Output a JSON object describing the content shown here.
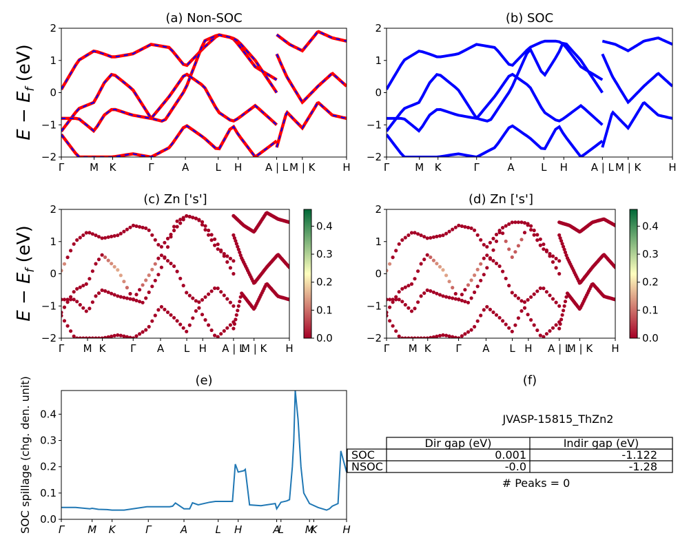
{
  "figure_title": "",
  "charts": {
    "a": {
      "title": "(a) Non-SOC"
    },
    "b": {
      "title": "(b) SOC"
    },
    "c": {
      "title": "(c)  Zn ['s']"
    },
    "d": {
      "title": "(d) Zn ['s']"
    },
    "e": {
      "title": "(e)"
    },
    "f": {
      "title": "(f)"
    }
  },
  "band_ylabel": "E − E_f (eV)",
  "band_ylabel_main": "E − E",
  "band_ylabel_sub": "f",
  "band_ylabel_unit": " (eV)",
  "spillage_ylabel": "SOC spillage (chg. den. unit)",
  "colorbar_ticks": [
    "0.0",
    "0.1",
    "0.2",
    "0.3",
    "0.4"
  ],
  "colors": {
    "nonsoc_line": "#ff0000",
    "nonsoc_dash": "#0000ff",
    "soc_line": "#0000ff",
    "spillage_line": "#1f77b4",
    "cmap_low": "#a50026",
    "cmap_mid": "#ffffbf",
    "cmap_high": "#006837"
  },
  "info": {
    "material": "JVASP-15815_ThZn2",
    "table": {
      "headers": [
        "Dir gap (eV)",
        "Indir gap (eV)"
      ],
      "rows": [
        {
          "label": "SOC",
          "dir": "0.001",
          "indir": "-1.122"
        },
        {
          "label": "NSOC",
          "dir": "-0.0",
          "indir": "-1.28"
        }
      ]
    },
    "peaks": "# Peaks = 0"
  },
  "chart_data": [
    {
      "panel": "a",
      "type": "line",
      "title": "(a) Non-SOC",
      "ylabel": "E − E_f (eV)",
      "ylim": [
        -2,
        2
      ],
      "yticks": [
        "−2",
        "−1",
        "0",
        "1",
        "2"
      ],
      "kpath_labels": [
        "Γ",
        "M",
        "K",
        "Γ",
        "A",
        "L",
        "H",
        "A | L",
        "M | K",
        "H"
      ],
      "kpath_positions": [
        0,
        0.115,
        0.18,
        0.315,
        0.435,
        0.55,
        0.62,
        0.755,
        0.845,
        1.0
      ],
      "series": [
        {
          "x": [
            0,
            0.06,
            0.115,
            0.15,
            0.18,
            0.25,
            0.315,
            0.38,
            0.435,
            0.5,
            0.55,
            0.6,
            0.62,
            0.68,
            0.755
          ],
          "y": [
            0.1,
            1.0,
            1.3,
            1.2,
            1.1,
            1.2,
            1.5,
            1.4,
            0.8,
            1.4,
            1.8,
            1.7,
            1.5,
            0.8,
            0.4
          ]
        },
        {
          "x": [
            0,
            0.06,
            0.115,
            0.15,
            0.18,
            0.25,
            0.315,
            0.36,
            0.435,
            0.5,
            0.55,
            0.6,
            0.62,
            0.68,
            0.755
          ],
          "y": [
            -1.2,
            -0.5,
            -0.3,
            0.3,
            0.6,
            0.1,
            -0.8,
            -0.9,
            0.1,
            1.6,
            1.8,
            1.7,
            1.6,
            1.0,
            0.0
          ]
        },
        {
          "x": [
            0,
            0.06,
            0.115,
            0.15,
            0.18,
            0.25,
            0.315,
            0.38,
            0.435,
            0.5,
            0.55,
            0.6,
            0.62,
            0.68,
            0.755
          ],
          "y": [
            -0.8,
            -0.8,
            -1.2,
            -0.7,
            -0.5,
            -0.7,
            -0.8,
            -0.1,
            0.6,
            0.2,
            -0.6,
            -0.9,
            -0.8,
            -0.4,
            -1.0
          ]
        },
        {
          "x": [
            0,
            0.06,
            0.115,
            0.15,
            0.18,
            0.25,
            0.315,
            0.38,
            0.435,
            0.5,
            0.55,
            0.6,
            0.62,
            0.68,
            0.755
          ],
          "y": [
            -1.3,
            -2.0,
            -2.0,
            -2.0,
            -2.0,
            -1.9,
            -2.0,
            -1.7,
            -1.0,
            -1.4,
            -1.8,
            -1.0,
            -1.3,
            -2.0,
            -1.5
          ]
        },
        {
          "x": [
            0.755,
            0.79,
            0.845,
            0.9,
            0.95,
            1.0
          ],
          "y": [
            1.2,
            0.5,
            -0.3,
            0.2,
            0.6,
            0.2
          ]
        },
        {
          "x": [
            0.755,
            0.79,
            0.845,
            0.9,
            0.95,
            1.0
          ],
          "y": [
            -1.7,
            -0.6,
            -1.1,
            -0.3,
            -0.7,
            -0.8
          ]
        },
        {
          "x": [
            0.755,
            0.8,
            0.845,
            0.9,
            0.95,
            1.0
          ],
          "y": [
            1.8,
            1.5,
            1.3,
            1.9,
            1.7,
            1.6
          ]
        }
      ]
    },
    {
      "panel": "b",
      "type": "line",
      "title": "(b) SOC",
      "ylim": [
        -2,
        2
      ],
      "yticks": [
        "−2",
        "−1",
        "0",
        "1",
        "2"
      ],
      "kpath_labels": [
        "Γ",
        "M",
        "K",
        "Γ",
        "A",
        "L",
        "H",
        "A | L",
        "M | K",
        "H"
      ],
      "kpath_positions": [
        0,
        0.115,
        0.18,
        0.315,
        0.435,
        0.55,
        0.62,
        0.755,
        0.845,
        1.0
      ],
      "series": [
        {
          "x": [
            0,
            0.06,
            0.115,
            0.15,
            0.18,
            0.25,
            0.315,
            0.38,
            0.435,
            0.5,
            0.55,
            0.6,
            0.62,
            0.68,
            0.755
          ],
          "y": [
            0.1,
            1.0,
            1.3,
            1.2,
            1.1,
            1.2,
            1.5,
            1.4,
            0.8,
            1.4,
            1.6,
            1.6,
            1.5,
            0.8,
            0.4
          ]
        },
        {
          "x": [
            0,
            0.06,
            0.115,
            0.15,
            0.18,
            0.25,
            0.315,
            0.36,
            0.435,
            0.5,
            0.55,
            0.6,
            0.62,
            0.68,
            0.755
          ],
          "y": [
            -1.2,
            -0.5,
            -0.3,
            0.3,
            0.6,
            0.1,
            -0.8,
            -0.9,
            0.1,
            1.4,
            0.5,
            1.2,
            1.6,
            1.0,
            0.0
          ]
        },
        {
          "x": [
            0,
            0.06,
            0.115,
            0.15,
            0.18,
            0.25,
            0.315,
            0.38,
            0.435,
            0.5,
            0.55,
            0.6,
            0.62,
            0.68,
            0.755
          ],
          "y": [
            -0.8,
            -0.8,
            -1.2,
            -0.7,
            -0.5,
            -0.7,
            -0.8,
            -0.1,
            0.6,
            0.2,
            -0.6,
            -0.9,
            -0.8,
            -0.4,
            -1.0
          ]
        },
        {
          "x": [
            0,
            0.06,
            0.115,
            0.15,
            0.18,
            0.25,
            0.315,
            0.38,
            0.435,
            0.5,
            0.55,
            0.6,
            0.62,
            0.68,
            0.755
          ],
          "y": [
            -1.3,
            -2.0,
            -2.0,
            -2.0,
            -2.0,
            -1.9,
            -2.0,
            -1.7,
            -1.0,
            -1.4,
            -1.8,
            -1.0,
            -1.3,
            -2.0,
            -1.5
          ]
        },
        {
          "x": [
            0.755,
            0.79,
            0.845,
            0.9,
            0.95,
            1.0
          ],
          "y": [
            1.2,
            0.5,
            -0.3,
            0.2,
            0.6,
            0.2
          ]
        },
        {
          "x": [
            0.755,
            0.79,
            0.845,
            0.9,
            0.95,
            1.0
          ],
          "y": [
            -1.7,
            -0.6,
            -1.1,
            -0.3,
            -0.7,
            -0.8
          ]
        },
        {
          "x": [
            0.755,
            0.8,
            0.845,
            0.9,
            0.95,
            1.0
          ],
          "y": [
            1.6,
            1.5,
            1.3,
            1.6,
            1.7,
            1.5
          ]
        }
      ]
    },
    {
      "panel": "c",
      "type": "scatter",
      "title": "(c)  Zn ['s']",
      "ylim": [
        -2,
        2
      ],
      "colorbar_range": [
        0.0,
        0.45
      ],
      "kpath_labels": [
        "Γ",
        "M",
        "K",
        "Γ",
        "A",
        "L",
        "H",
        "A | L",
        "M | K",
        "H"
      ],
      "kpath_positions": [
        0,
        0.115,
        0.18,
        0.315,
        0.435,
        0.55,
        0.62,
        0.755,
        0.845,
        1.0
      ],
      "weight_notes": "mostly ~0 (dark red); Zn s weight ~0.2 near Γ around 0.2 eV"
    },
    {
      "panel": "d",
      "type": "scatter",
      "title": "(d) Zn ['s']",
      "ylim": [
        -2,
        2
      ],
      "colorbar_range": [
        0.0,
        0.45
      ],
      "kpath_labels": [
        "Γ",
        "M",
        "K",
        "Γ",
        "A",
        "L",
        "H",
        "A | L",
        "M | K",
        "H"
      ],
      "kpath_positions": [
        0,
        0.115,
        0.18,
        0.315,
        0.435,
        0.55,
        0.62,
        0.755,
        0.845,
        1.0
      ]
    },
    {
      "panel": "e",
      "type": "line",
      "title": "(e)",
      "ylabel": "SOC spillage (chg. den. unit)",
      "ylim": [
        0,
        0.49
      ],
      "yticks": [
        "0.0",
        "0.1",
        "0.2",
        "0.3",
        "0.4"
      ],
      "kpath_labels": [
        "Γ",
        "M",
        "K",
        "Γ",
        "A",
        "L",
        "H",
        "A",
        "L",
        "M",
        "K",
        "H"
      ],
      "kpath_positions": [
        0,
        0.108,
        0.178,
        0.305,
        0.43,
        0.55,
        0.62,
        0.755,
        0.77,
        0.87,
        0.885,
        1.0
      ],
      "x": [
        0,
        0.05,
        0.1,
        0.108,
        0.13,
        0.16,
        0.178,
        0.22,
        0.3,
        0.305,
        0.34,
        0.38,
        0.39,
        0.4,
        0.43,
        0.45,
        0.46,
        0.48,
        0.52,
        0.54,
        0.6,
        0.61,
        0.62,
        0.64,
        0.645,
        0.66,
        0.7,
        0.75,
        0.755,
        0.77,
        0.79,
        0.8,
        0.81,
        0.815,
        0.82,
        0.83,
        0.84,
        0.85,
        0.87,
        0.9,
        0.93,
        0.94,
        0.95,
        0.96,
        0.97,
        0.98,
        1.0
      ],
      "y": [
        0.045,
        0.045,
        0.04,
        0.042,
        0.038,
        0.037,
        0.035,
        0.035,
        0.048,
        0.048,
        0.048,
        0.048,
        0.05,
        0.062,
        0.04,
        0.04,
        0.063,
        0.055,
        0.065,
        0.068,
        0.068,
        0.21,
        0.18,
        0.185,
        0.19,
        0.055,
        0.052,
        0.06,
        0.04,
        0.065,
        0.07,
        0.075,
        0.2,
        0.3,
        0.49,
        0.38,
        0.2,
        0.1,
        0.06,
        0.045,
        0.035,
        0.04,
        0.05,
        0.055,
        0.06,
        0.26,
        0.18
      ]
    }
  ]
}
